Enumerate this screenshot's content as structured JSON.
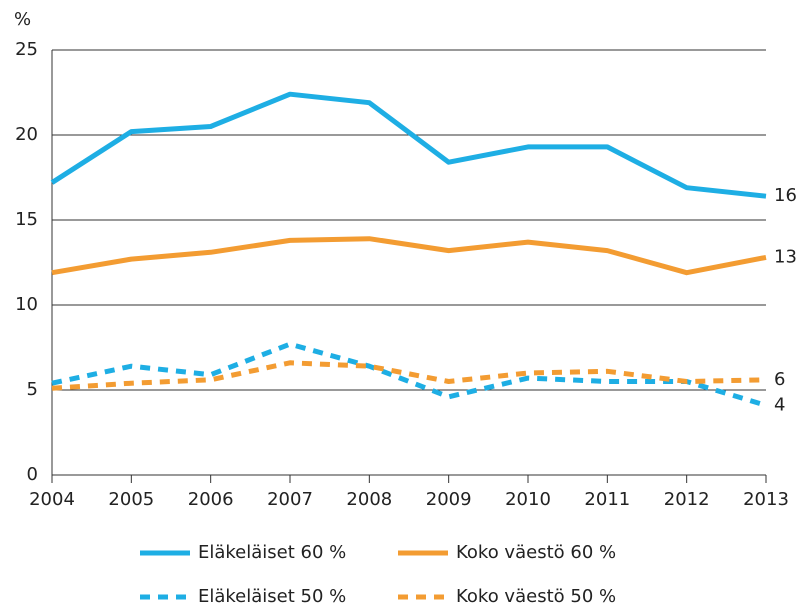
{
  "chart_data": {
    "type": "line",
    "y_label": "%",
    "x": [
      2004,
      2005,
      2006,
      2007,
      2008,
      2009,
      2010,
      2011,
      2012,
      2013
    ],
    "xlim": [
      2004,
      2013
    ],
    "xticks": [
      2004,
      2005,
      2006,
      2007,
      2008,
      2009,
      2010,
      2011,
      2012,
      2013
    ],
    "ylim": [
      0,
      25
    ],
    "yticks": [
      0,
      5,
      10,
      15,
      20,
      25
    ],
    "grid": true,
    "legend": "bottom",
    "series": [
      {
        "name": "Eläkeläiset 60 %",
        "color": "#1eaee4",
        "dashed": false,
        "values": [
          17.2,
          20.2,
          20.5,
          22.4,
          21.9,
          18.4,
          19.3,
          19.3,
          16.9,
          16.4
        ],
        "value_labels": [
          null,
          null,
          null,
          null,
          null,
          null,
          null,
          null,
          null,
          "16"
        ]
      },
      {
        "name": "Koko väestö 60 %",
        "color": "#f39c32",
        "dashed": false,
        "values": [
          11.9,
          12.7,
          13.1,
          13.8,
          13.9,
          13.2,
          13.7,
          13.2,
          11.9,
          12.8
        ],
        "value_labels": [
          null,
          null,
          null,
          null,
          null,
          null,
          null,
          null,
          null,
          "13"
        ]
      },
      {
        "name": "Eläkeläiset 50 %",
        "color": "#1eaee4",
        "dashed": true,
        "values": [
          5.4,
          6.4,
          5.9,
          7.7,
          6.4,
          4.6,
          5.7,
          5.5,
          5.5,
          4.1
        ],
        "value_labels": [
          null,
          null,
          null,
          null,
          null,
          null,
          null,
          null,
          null,
          "4"
        ]
      },
      {
        "name": "Koko väestö 50 %",
        "color": "#f39c32",
        "dashed": true,
        "values": [
          5.1,
          5.4,
          5.6,
          6.6,
          6.4,
          5.5,
          6.0,
          6.1,
          5.5,
          5.6
        ],
        "value_labels": [
          null,
          null,
          null,
          null,
          null,
          null,
          null,
          null,
          null,
          "6"
        ]
      }
    ]
  }
}
